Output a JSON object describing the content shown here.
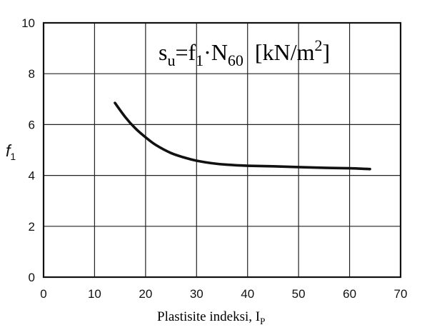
{
  "chart_data": {
    "type": "line",
    "title": "",
    "formula": {
      "s": "s",
      "u": "u",
      "eq": "=f",
      "one": "1",
      "dot": "·N",
      "sixty": "60",
      "unit_open": "[kN/m",
      "sq": "2",
      "unit_close": "]"
    },
    "ylabel": {
      "f": "f",
      "sub": "1"
    },
    "xlabel": {
      "text": "Plastisite indeksi, I",
      "sub": "P"
    },
    "xlim": [
      0,
      70
    ],
    "ylim": [
      0,
      10
    ],
    "xticks": [
      0,
      10,
      20,
      30,
      40,
      50,
      60,
      70
    ],
    "yticks": [
      0,
      2,
      4,
      6,
      8,
      10
    ],
    "grid": true,
    "series": [
      {
        "x": [
          14,
          16,
          18,
          20,
          22,
          25,
          28,
          30,
          33,
          36,
          40,
          45,
          50,
          55,
          60,
          64
        ],
        "y": [
          6.85,
          6.3,
          5.85,
          5.5,
          5.2,
          4.88,
          4.68,
          4.58,
          4.48,
          4.42,
          4.38,
          4.36,
          4.33,
          4.3,
          4.28,
          4.25
        ]
      }
    ]
  }
}
